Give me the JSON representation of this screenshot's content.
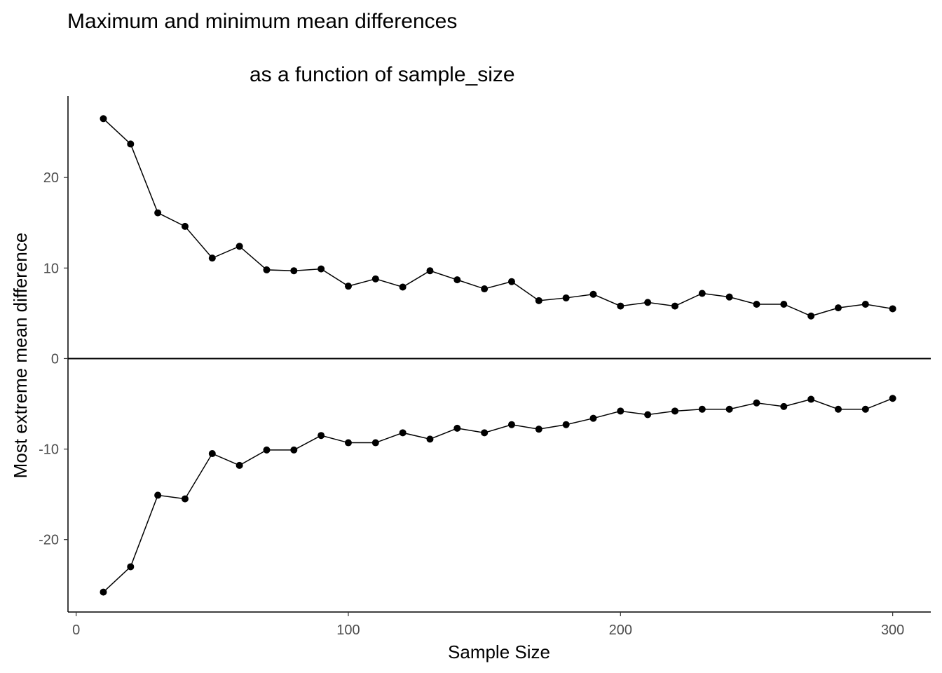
{
  "chart_data": {
    "type": "line",
    "title_line1": "Maximum and minimum mean differences",
    "title_line2": "as a function of sample_size",
    "xlabel": "Sample Size",
    "ylabel": "Most extreme mean difference",
    "xlim": [
      -3,
      314
    ],
    "ylim": [
      -28,
      29
    ],
    "x_ticks": [
      0,
      100,
      200,
      300
    ],
    "y_ticks": [
      -20,
      -10,
      0,
      10,
      20
    ],
    "grid": false,
    "reference_line_y": 0,
    "x": [
      10,
      20,
      30,
      40,
      50,
      60,
      70,
      80,
      90,
      100,
      110,
      120,
      130,
      140,
      150,
      160,
      170,
      180,
      190,
      200,
      210,
      220,
      230,
      240,
      250,
      260,
      270,
      280,
      290,
      300
    ],
    "series": [
      {
        "values": [
          26.5,
          23.7,
          16.1,
          14.6,
          11.1,
          12.4,
          9.8,
          9.7,
          9.9,
          8.0,
          8.8,
          7.9,
          9.7,
          8.7,
          7.7,
          8.5,
          6.4,
          6.7,
          7.1,
          5.8,
          6.2,
          5.8,
          7.2,
          6.8,
          6.0,
          6.0,
          4.7,
          5.6,
          6.0,
          5.5
        ],
        "color": "#000000"
      },
      {
        "values": [
          -25.8,
          -23.0,
          -15.1,
          -15.5,
          -10.5,
          -11.8,
          -10.1,
          -10.1,
          -8.5,
          -9.3,
          -9.3,
          -8.2,
          -8.9,
          -7.7,
          -8.2,
          -7.3,
          -7.8,
          -7.3,
          -6.6,
          -5.8,
          -6.2,
          -5.8,
          -5.6,
          -5.6,
          -4.9,
          -5.3,
          -4.5,
          -5.6,
          -5.6,
          -4.4
        ],
        "color": "#000000"
      }
    ]
  }
}
